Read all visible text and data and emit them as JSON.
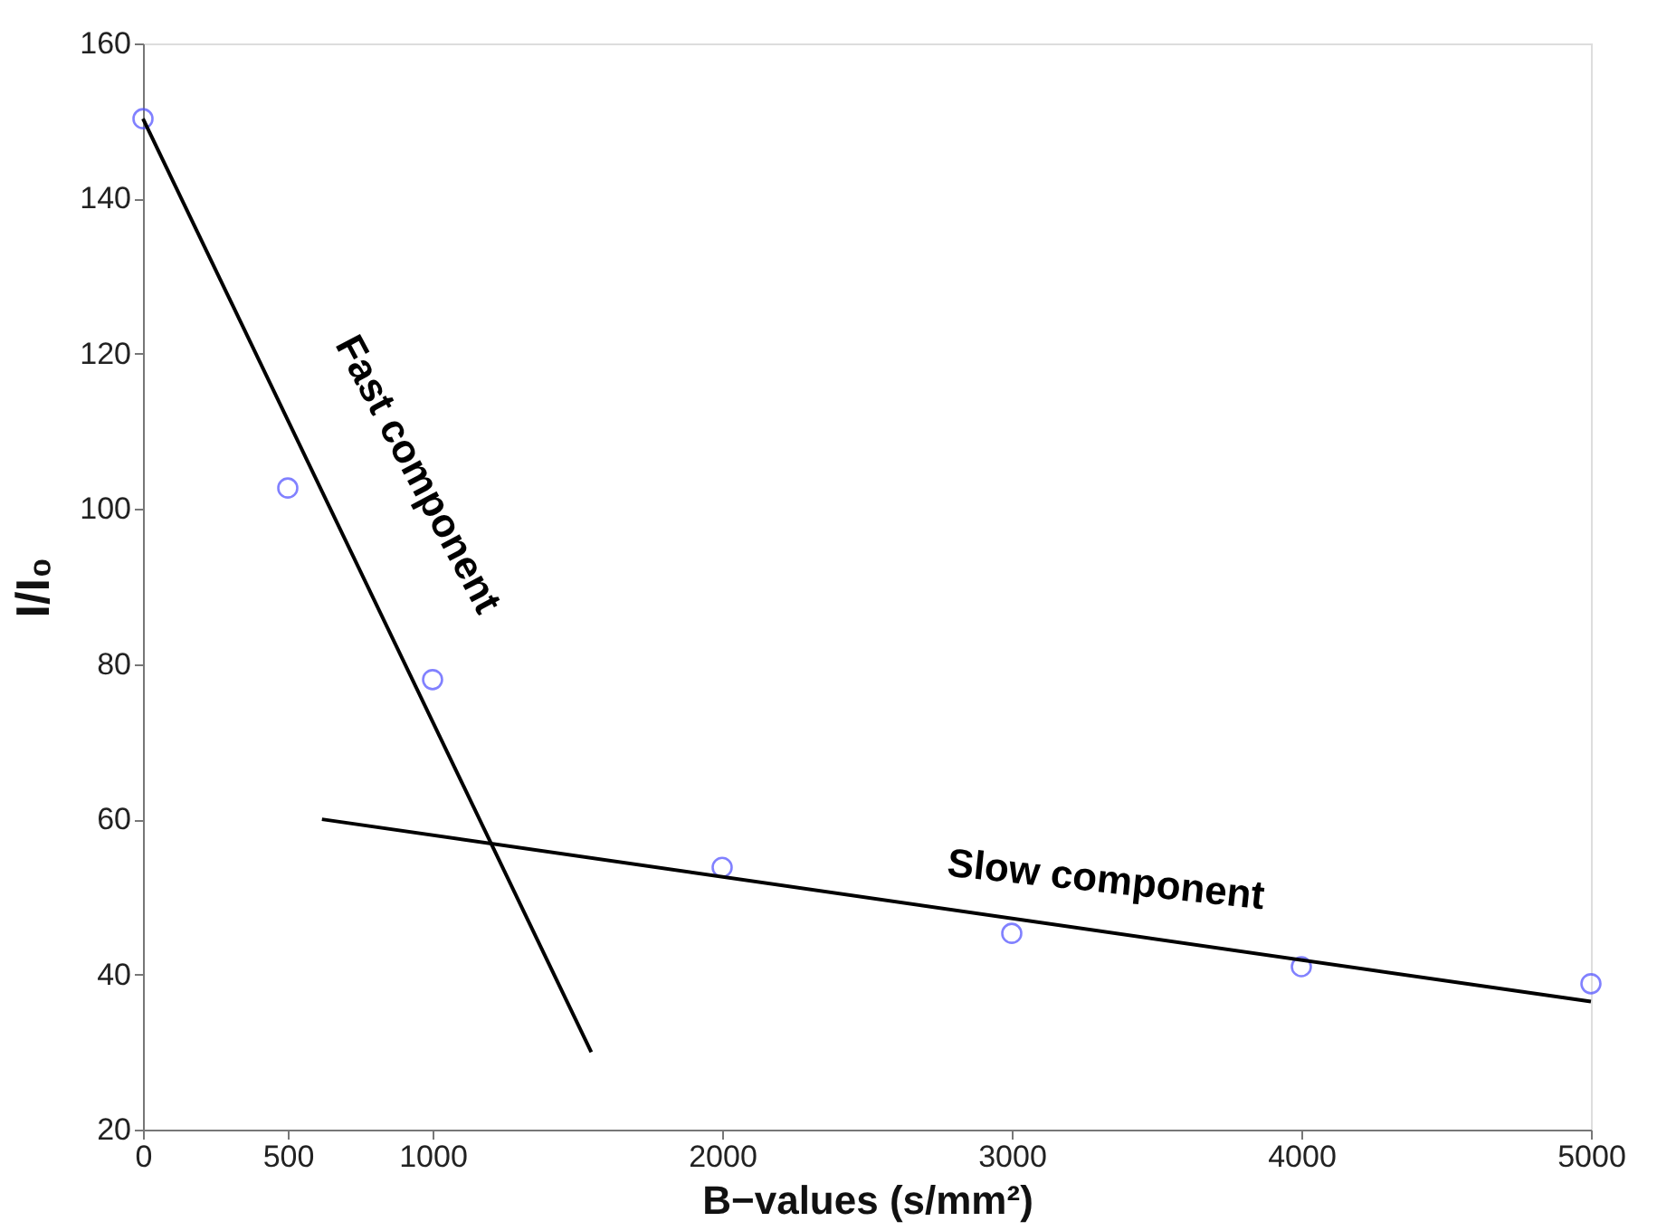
{
  "chart_data": {
    "type": "scatter",
    "xlabel": "B−values (s/mm²)",
    "ylabel": "I/I₀",
    "x": [
      0,
      500,
      1000,
      2000,
      3000,
      4000,
      5000
    ],
    "series": [
      {
        "color": "#4d4dff",
        "marker": "circle",
        "values": [
          150.3,
          102.7,
          78,
          53.8,
          45.3,
          41,
          38.8
        ]
      },
      {
        "type": "line",
        "color": "#000000",
        "x": [
          0,
          1548
        ],
        "values": [
          150.3,
          30
        ],
        "marker": "none"
      },
      {
        "type": "line",
        "color": "#000000",
        "x": [
          618,
          5000
        ],
        "values": [
          60,
          36.5
        ],
        "marker": "none"
      }
    ],
    "annotations": [
      "Fast component",
      "Slow component"
    ],
    "xlim": [
      0,
      5000
    ],
    "xticks": [
      0,
      500,
      1000,
      2000,
      3000,
      4000,
      5000
    ],
    "ylim": [
      20,
      160
    ],
    "yticks": [
      20,
      40,
      60,
      80,
      100,
      120,
      140,
      160
    ],
    "grid": false
  }
}
